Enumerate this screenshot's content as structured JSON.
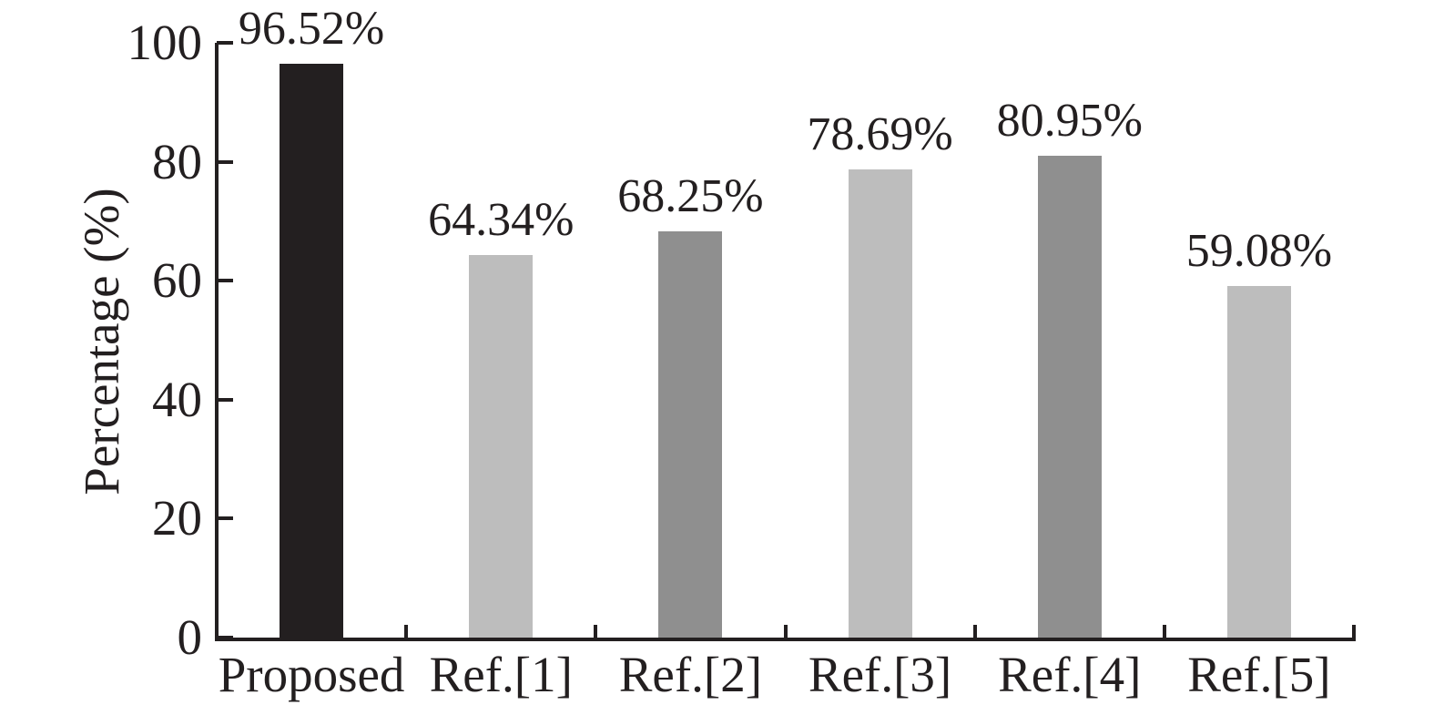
{
  "figure": {
    "background": "#ffffff",
    "text_color": "#231f20"
  },
  "chart_data": {
    "type": "bar",
    "title": "",
    "categories": [
      "Proposed",
      "Ref.[1]",
      "Ref.[2]",
      "Ref.[3]",
      "Ref.[4]",
      "Ref.[5]"
    ],
    "values": [
      96.52,
      64.34,
      68.25,
      78.69,
      80.95,
      59.08
    ],
    "value_labels": [
      "96.52%",
      "64.34%",
      "68.25%",
      "78.69%",
      "80.95%",
      "59.08%"
    ],
    "bar_colors": [
      "#231f20",
      "#bdbdbd",
      "#8f8f8f",
      "#bdbdbd",
      "#8f8f8f",
      "#bdbdbd"
    ],
    "xlabel": "",
    "ylabel": "Percentage (%)",
    "ylim": [
      0,
      100
    ],
    "yticks": [
      0,
      20,
      40,
      60,
      80,
      100
    ],
    "ytick_labels": [
      "0",
      "20",
      "40",
      "60",
      "80",
      "100"
    ],
    "grid": false,
    "legend": "none",
    "axis_color": "#231f20"
  }
}
